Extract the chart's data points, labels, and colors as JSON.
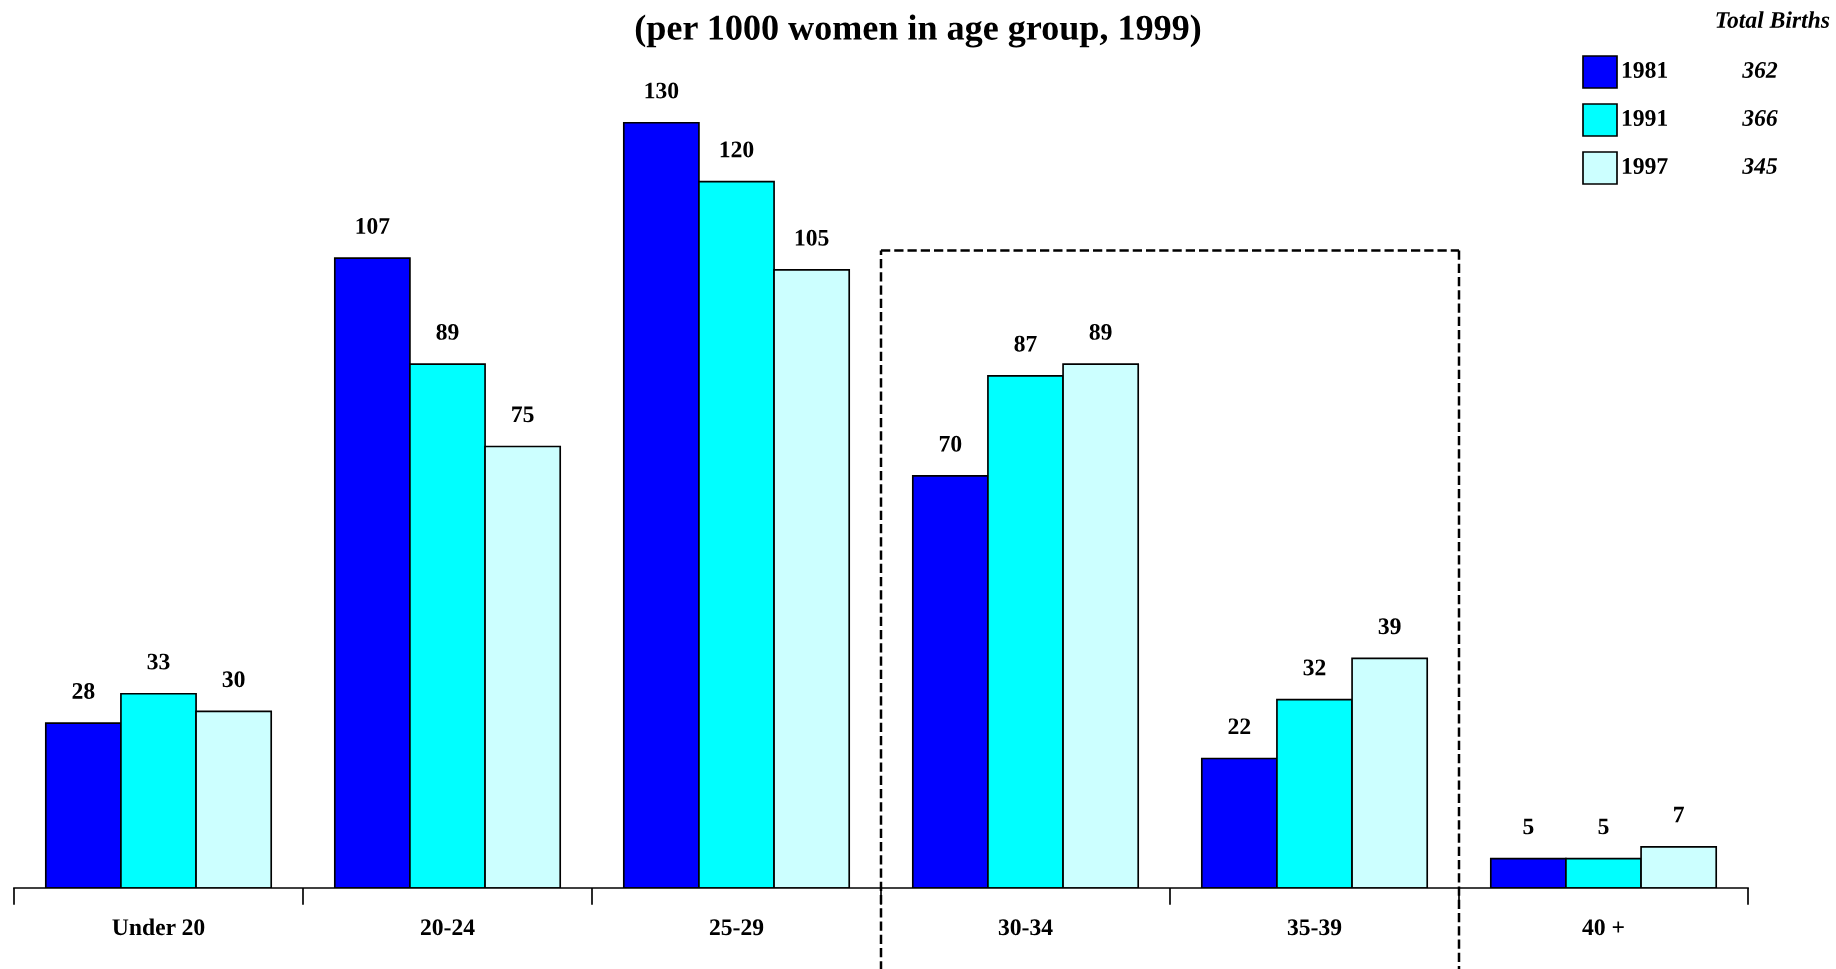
{
  "chart_data": {
    "type": "bar",
    "subtitle": "(per 1000 women in age group, 1999)",
    "categories": [
      "Under 20",
      "20-24",
      "25-29",
      "30-34",
      "35-39",
      "40 +"
    ],
    "series": [
      {
        "name": "1981",
        "color": "#0000ff",
        "values": [
          28,
          107,
          130,
          70,
          22,
          5
        ]
      },
      {
        "name": "1991",
        "color": "#00ffff",
        "values": [
          33,
          89,
          120,
          87,
          32,
          5
        ]
      },
      {
        "name": "1997",
        "color": "#ccffff",
        "values": [
          30,
          75,
          105,
          89,
          39,
          7
        ]
      }
    ],
    "data_labels": true,
    "legend": "top right",
    "legend_title": "Total Births",
    "annotations": [
      "362",
      "366",
      "345"
    ]
  }
}
